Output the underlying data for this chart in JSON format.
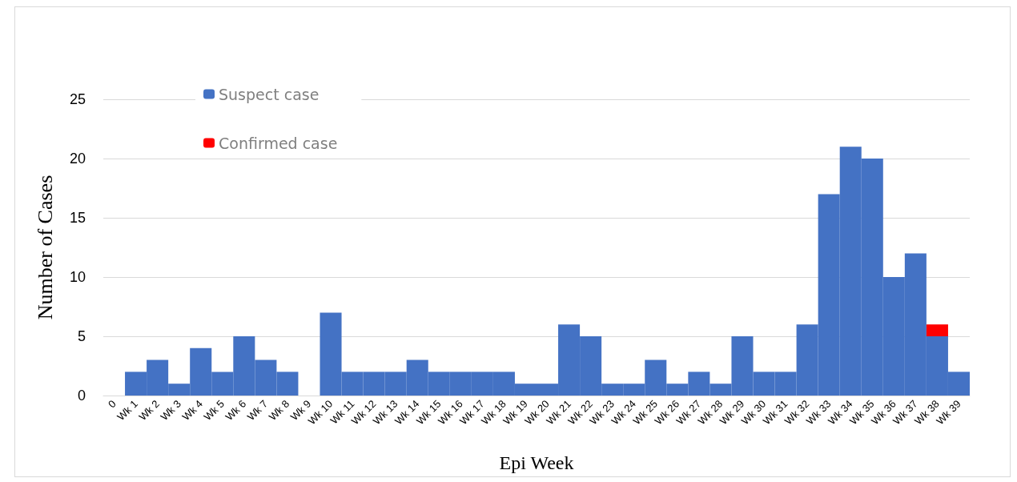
{
  "chart_data": {
    "type": "bar",
    "stacked": true,
    "xlabel": "Epi Week",
    "ylabel": "Number of Cases",
    "categories": [
      "0",
      "Wk 1",
      "Wk 2",
      "Wk 3",
      "Wk 4",
      "Wk 5",
      "Wk 6",
      "Wk 7",
      "Wk 8",
      "Wk 9",
      "Wk 10",
      "Wk 11",
      "Wk 12",
      "Wk 13",
      "Wk 14",
      "Wk 15",
      "Wk 16",
      "Wk 17",
      "Wk 18",
      "Wk 19",
      "Wk 20",
      "Wk 21",
      "Wk 22",
      "Wk 23",
      "Wk 24",
      "Wk 25",
      "Wk 26",
      "Wk 27",
      "Wk 28",
      "Wk 29",
      "Wk 30",
      "Wk 31",
      "Wk 32",
      "Wk 33",
      "Wk 34",
      "Wk 35",
      "Wk 36",
      "Wk 37",
      "Wk 38",
      "Wk 39"
    ],
    "series": [
      {
        "name": "Suspect case",
        "color": "#4472c4",
        "values": [
          0,
          2,
          3,
          1,
          4,
          2,
          5,
          3,
          2,
          0,
          7,
          2,
          2,
          2,
          3,
          2,
          2,
          2,
          2,
          1,
          1,
          6,
          5,
          1,
          1,
          3,
          1,
          2,
          1,
          5,
          2,
          2,
          6,
          17,
          21,
          20,
          10,
          12,
          5,
          2
        ]
      },
      {
        "name": "Confirmed case",
        "color": "#ff0000",
        "values": [
          null,
          null,
          null,
          null,
          null,
          null,
          null,
          null,
          null,
          null,
          null,
          null,
          null,
          null,
          null,
          null,
          null,
          null,
          null,
          null,
          null,
          null,
          null,
          null,
          null,
          null,
          null,
          null,
          null,
          null,
          null,
          null,
          null,
          null,
          null,
          null,
          null,
          null,
          1,
          null
        ]
      }
    ],
    "ylim": [
      0,
      25
    ],
    "yticks": [
      0,
      5,
      10,
      15,
      20,
      25
    ],
    "grid": "y",
    "legend": "top left"
  }
}
